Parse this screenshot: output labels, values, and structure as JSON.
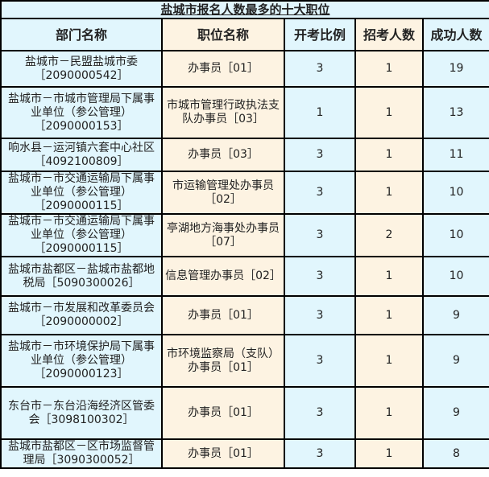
{
  "title": "盐城市报名人数最多的十大职位",
  "headers": [
    "部门名称",
    "职位名称",
    "开考比例",
    "招考人数",
    "成功人数"
  ],
  "rows": [
    {
      "dept": "盐城市－民盟盐城市委［2090000542］",
      "position": "办事员［01］",
      "ratio": "3",
      "quota": "1",
      "success": "19"
    },
    {
      "dept": "盐城市－市城市管理局下属事业单位（参公管理）［2090000153］",
      "position": "市城市管理行政执法支队办事员［03］",
      "ratio": "1",
      "quota": "1",
      "success": "13"
    },
    {
      "dept": "响水县－运河镇六套中心社区［4092100809］",
      "position": "办事员［03］",
      "ratio": "3",
      "quota": "1",
      "success": "11"
    },
    {
      "dept": "盐城市－市交通运输局下属事业单位（参公管理）［2090000115］",
      "position": "市运输管理处办事员［02］",
      "ratio": "3",
      "quota": "1",
      "success": "10"
    },
    {
      "dept": "盐城市－市交通运输局下属事业单位（参公管理）［2090000115］",
      "position": "亭湖地方海事处办事员［07］",
      "ratio": "3",
      "quota": "2",
      "success": "10"
    },
    {
      "dept": "盐城市盐都区－盐城市盐都地税局［5090300026］",
      "position": "信息管理办事员［02］",
      "ratio": "3",
      "quota": "1",
      "success": "10"
    },
    {
      "dept": "盐城市－市发展和改革委员会［2090000002］",
      "position": "办事员［01］",
      "ratio": "3",
      "quota": "1",
      "success": "9"
    },
    {
      "dept": "盐城市－市环境保护局下属事业单位（参公管理）［2090000123］",
      "position": "市环境监察局（支队）办事员［01］",
      "ratio": "3",
      "quota": "1",
      "success": "9"
    },
    {
      "dept": "东台市－东台沿海经济区管委会［3098100302］",
      "position": "办事员［01］",
      "ratio": "3",
      "quota": "1",
      "success": "9"
    },
    {
      "dept": "盐城市盐都区－区市场监督管理局［3090300052］",
      "position": "办事员［01］",
      "ratio": "3",
      "quota": "1",
      "success": "8"
    }
  ]
}
